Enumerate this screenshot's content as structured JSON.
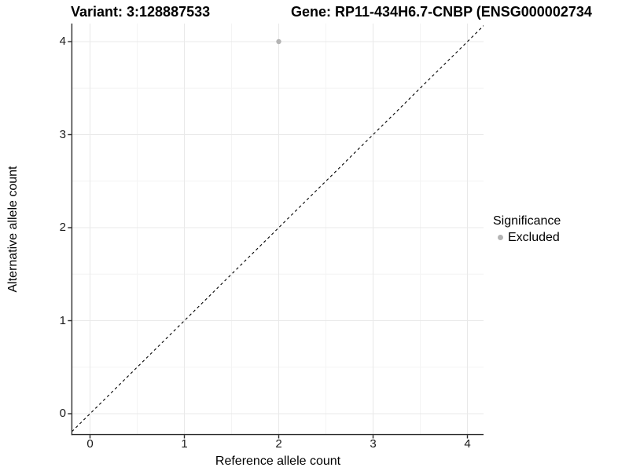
{
  "header": {
    "variant_title": "Variant: 3:128887533",
    "gene_title": "Gene: RP11-434H6.7-CNBP (ENSG000002734"
  },
  "axes": {
    "x_title": "Reference allele count",
    "y_title": "Alternative allele count"
  },
  "legend": {
    "title": "Significance",
    "items": [
      {
        "label": "Excluded",
        "color": "#b4b4b4",
        "marker": "circle"
      }
    ]
  },
  "chart_data": {
    "type": "scatter",
    "title_left": "Variant: 3:128887533",
    "title_right": "Gene: RP11-434H6.7-CNBP (ENSG000002734",
    "xlabel": "Reference allele count",
    "ylabel": "Alternative allele count",
    "xlim": [
      -0.19,
      4.18
    ],
    "ylim": [
      -0.22,
      4.2
    ],
    "x_ticks": [
      0,
      1,
      2,
      3,
      4
    ],
    "y_ticks": [
      0,
      1,
      2,
      3,
      4
    ],
    "minor_gridlines_x": [
      0.5,
      1.5,
      2.5,
      3.5
    ],
    "minor_gridlines_y": [
      0.5,
      1.5,
      2.5,
      3.5
    ],
    "grid": "major+minor",
    "legend_position": "right",
    "series": [
      {
        "name": "Excluded",
        "color": "#b4b4b4",
        "marker_radius_px": 3.2,
        "points": [
          {
            "x": 2,
            "y": 4
          }
        ]
      }
    ],
    "reference_line": {
      "kind": "identity y=x",
      "style": "dashed",
      "color": "#000000"
    },
    "colors": {
      "grid_major": "#e9e9e9",
      "grid_minor": "#f4f4f4",
      "axis_line": "#2a2a2a",
      "tick_label": "#1a1a1a",
      "title_text": "#000000"
    }
  }
}
